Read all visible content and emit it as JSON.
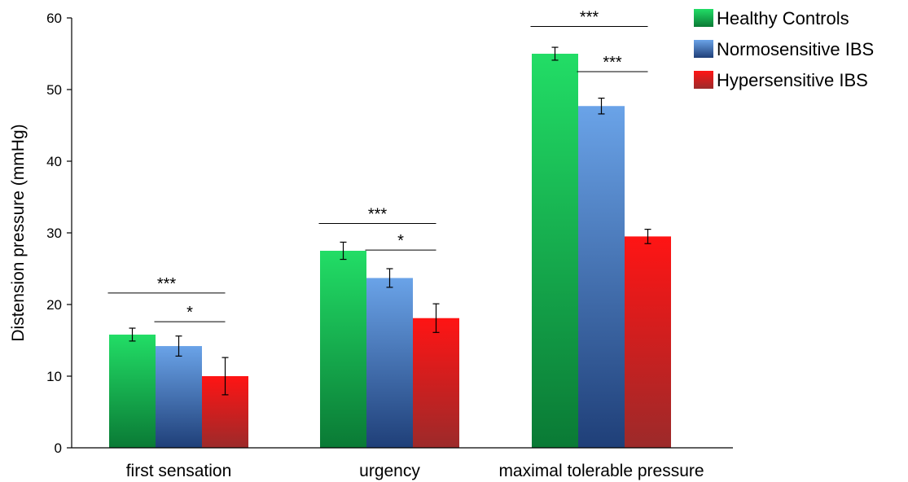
{
  "chart_data": {
    "type": "bar",
    "title": "",
    "xlabel": "",
    "ylabel": "Distension pressure (mmHg)",
    "ylim": [
      0,
      60
    ],
    "yticks": [
      0,
      10,
      20,
      30,
      40,
      50,
      60
    ],
    "categories": [
      "first sensation",
      "urgency",
      "maximal tolerable pressure"
    ],
    "series": [
      {
        "name": "Healthy Controls",
        "values": [
          15.8,
          27.5,
          55.0
        ],
        "errors": [
          0.9,
          1.2,
          0.9
        ],
        "color_top": "#22dd66",
        "color_bottom": "#0a7a35"
      },
      {
        "name": "Normosensitive IBS",
        "values": [
          14.2,
          23.7,
          47.7
        ],
        "errors": [
          1.4,
          1.3,
          1.1
        ],
        "color_top": "#6aa3e8",
        "color_bottom": "#1f3f78"
      },
      {
        "name": "Hypersensitive IBS",
        "values": [
          10.0,
          18.1,
          29.5
        ],
        "errors": [
          2.6,
          2.0,
          1.0
        ],
        "color_top": "#ff1414",
        "color_bottom": "#9c2a2a"
      }
    ],
    "significance": [
      {
        "category": 0,
        "from": 0,
        "to": 2,
        "label": "***",
        "y": 21.6
      },
      {
        "category": 0,
        "from": 1,
        "to": 2,
        "label": "*",
        "y": 17.6
      },
      {
        "category": 1,
        "from": 0,
        "to": 2,
        "label": "***",
        "y": 31.3
      },
      {
        "category": 1,
        "from": 1,
        "to": 2,
        "label": "*",
        "y": 27.6
      },
      {
        "category": 2,
        "from": 0,
        "to": 2,
        "label": "***",
        "y": 58.8
      },
      {
        "category": 2,
        "from": 1,
        "to": 2,
        "label": "***",
        "y": 52.5
      }
    ],
    "legend_position": "top-right",
    "grid": false
  }
}
